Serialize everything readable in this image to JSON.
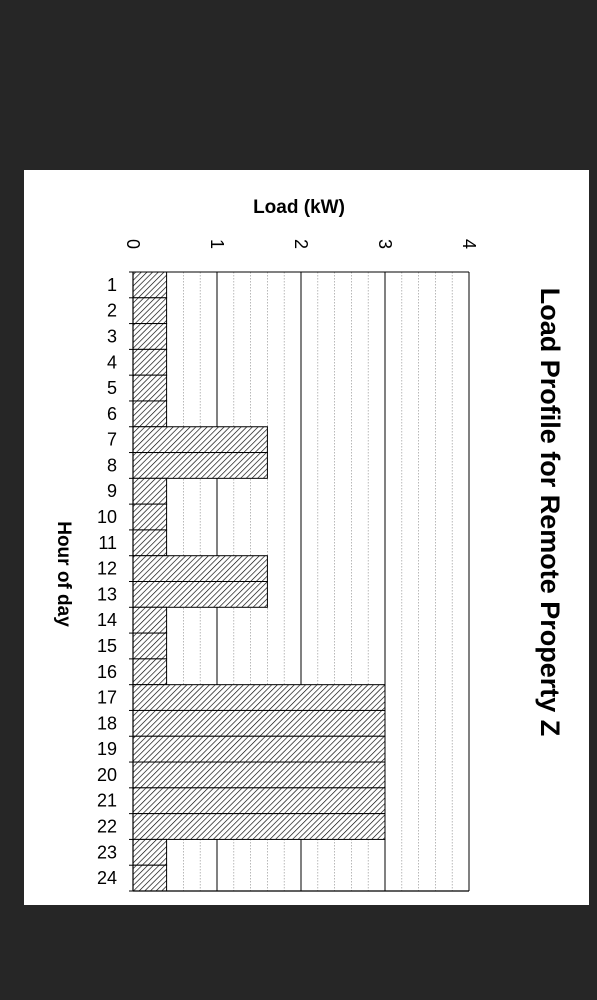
{
  "chart_data": {
    "type": "bar",
    "orientation": "horizontal",
    "title": "Load Profile for Remote Property Z",
    "xlabel": "Load (kW)",
    "ylabel": "Hour of day",
    "xlim": [
      0,
      4
    ],
    "x_ticks": [
      "0",
      "1",
      "2",
      "3",
      "4"
    ],
    "categories": [
      "1",
      "2",
      "3",
      "4",
      "5",
      "6",
      "7",
      "8",
      "9",
      "10",
      "11",
      "12",
      "13",
      "14",
      "15",
      "16",
      "17",
      "18",
      "19",
      "20",
      "21",
      "22",
      "23",
      "24"
    ],
    "values": [
      0.4,
      0.4,
      0.4,
      0.4,
      0.4,
      0.4,
      1.6,
      1.6,
      0.4,
      0.4,
      0.4,
      1.6,
      1.6,
      0.4,
      0.4,
      0.4,
      3.0,
      3.0,
      3.0,
      3.0,
      3.0,
      3.0,
      0.4,
      0.4
    ],
    "grid": true,
    "bar_fill": "hatched",
    "colors": {
      "background": "#262626",
      "panel": "#ffffff",
      "bar_stroke": "#000000",
      "hatch": "#000000",
      "grid_major": "#000000",
      "grid_minor": "#9a9a9a"
    }
  }
}
